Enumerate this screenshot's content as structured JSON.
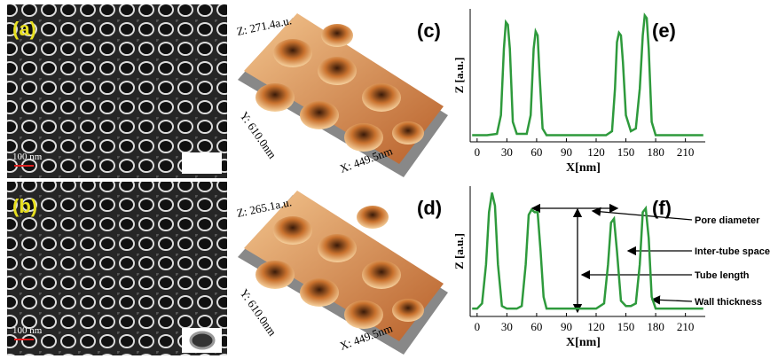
{
  "panels": {
    "a": {
      "label": "(a)",
      "scale_bar": "100 nm"
    },
    "b": {
      "label": "(b)",
      "scale_bar": "100 nm"
    },
    "c": {
      "label": "(c)",
      "z_axis": "Z: 271.4a.u.",
      "y_axis": "Y: 610.0nm",
      "x_axis": "X: 449.5nm"
    },
    "d": {
      "label": "(d)",
      "z_axis": "Z: 265.1a.u.",
      "y_axis": "Y: 610.0nm",
      "x_axis": "X: 449.5nm"
    }
  },
  "chart_data": [
    {
      "type": "line",
      "label": "(e)",
      "xlabel": "X[nm]",
      "ylabel": "Z [a.u.]",
      "x": [
        -5,
        0,
        10,
        20,
        24,
        27,
        29,
        31,
        33,
        36,
        40,
        50,
        54,
        57,
        59,
        61,
        63,
        66,
        70,
        80,
        100,
        120,
        130,
        136,
        139,
        141,
        143,
        145,
        147,
        150,
        155,
        160,
        164,
        167,
        169,
        171,
        173,
        176,
        180,
        190,
        200,
        210,
        220,
        228
      ],
      "series": [
        {
          "color": "#2e9a3c",
          "values": [
            5,
            5,
            5,
            6,
            20,
            70,
            90,
            88,
            70,
            15,
            6,
            6,
            20,
            70,
            83,
            80,
            50,
            10,
            5,
            5,
            5,
            5,
            5,
            8,
            40,
            75,
            82,
            80,
            60,
            20,
            8,
            10,
            40,
            80,
            95,
            93,
            70,
            15,
            5,
            5,
            5,
            5,
            5,
            5
          ]
        }
      ],
      "xlim": [
        -7,
        230
      ],
      "xticks": [
        0,
        30,
        60,
        90,
        120,
        150,
        180,
        210
      ],
      "ylim": [
        0,
        100
      ]
    },
    {
      "type": "line",
      "label": "(f)",
      "xlabel": "X[nm]",
      "ylabel": "Z [a.u.]",
      "x": [
        -5,
        0,
        5,
        9,
        12,
        15,
        18,
        21,
        25,
        30,
        40,
        45,
        49,
        52,
        55,
        58,
        61,
        64,
        67,
        70,
        80,
        100,
        120,
        128,
        132,
        135,
        138,
        141,
        145,
        150,
        155,
        160,
        164,
        167,
        170,
        173,
        176,
        180,
        190,
        200,
        210,
        220,
        228
      ],
      "series": [
        {
          "color": "#2e9a3c",
          "values": [
            6,
            6,
            10,
            40,
            80,
            95,
            85,
            40,
            8,
            6,
            6,
            8,
            40,
            78,
            82,
            80,
            80,
            50,
            15,
            6,
            6,
            6,
            6,
            10,
            40,
            72,
            75,
            50,
            12,
            8,
            8,
            10,
            40,
            80,
            83,
            60,
            15,
            6,
            6,
            6,
            6,
            6,
            6
          ]
        }
      ],
      "xlim": [
        -7,
        230
      ],
      "xticks": [
        0,
        30,
        60,
        90,
        120,
        150,
        180,
        210
      ],
      "ylim": [
        0,
        100
      ],
      "annotations": [
        "Pore diameter",
        "Inter-tube space",
        "Tube length",
        "Wall thickness"
      ]
    }
  ]
}
